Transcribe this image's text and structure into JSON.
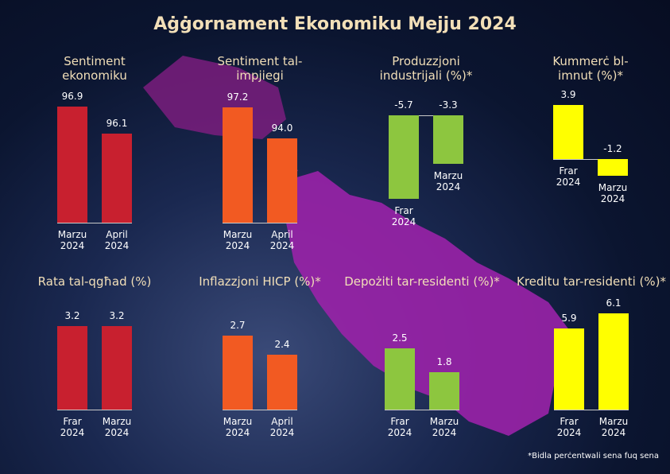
{
  "title": "Aġġornament Ekonomiku Mejju 2024",
  "footnote": "*Bidla perċentwali sena fuq sena",
  "chart_data": [
    {
      "type": "bar",
      "title": "Sentiment ekonomiku",
      "categories": [
        "Marzu 2024",
        "April 2024"
      ],
      "values": [
        96.9,
        96.1
      ],
      "color": "#c8202f",
      "ylim": [
        93.4,
        97
      ]
    },
    {
      "type": "bar",
      "title": "Sentiment tal-impjiegi",
      "categories": [
        "Marzu 2024",
        "April 2024"
      ],
      "values": [
        97.2,
        94
      ],
      "value_labels": [
        "97.2",
        "94.0"
      ],
      "color": "#f25a22",
      "ylim": [
        85.3,
        97.6
      ]
    },
    {
      "type": "bar",
      "title": "Produzzjoni industrijali (%)*",
      "categories": [
        "Frar 2024",
        "Marzu 2024"
      ],
      "values": [
        -5.7,
        -3.3
      ],
      "color": "#8dc63f",
      "ylim": [
        -7.3,
        0.8
      ]
    },
    {
      "type": "bar",
      "title": "Kummerċ bl-imnut (%)*",
      "categories": [
        "Frar 2024",
        "Marzu 2024"
      ],
      "values": [
        3.9,
        -1.2
      ],
      "color": "#ffff00",
      "ylim": [
        -4.6,
        4
      ]
    },
    {
      "type": "bar",
      "title": "Rata tal-qgħad (%)",
      "categories": [
        "Frar 2024",
        "Marzu 2024"
      ],
      "values": [
        3.2,
        3.2
      ],
      "color": "#c8202f",
      "ylim": [
        0,
        4.1
      ]
    },
    {
      "type": "bar",
      "title": "Inflazzjoni HICP (%)*",
      "categories": [
        "Marzu 2024",
        "April 2024"
      ],
      "values": [
        2.7,
        2.4
      ],
      "color": "#f25a22",
      "ylim": [
        1.5,
        3.25
      ]
    },
    {
      "type": "bar",
      "title": "Depożiti tar-residenti (%)*",
      "categories": [
        "Frar 2024",
        "Marzu 2024"
      ],
      "values": [
        2.5,
        1.8
      ],
      "color": "#8dc63f",
      "ylim": [
        0.7,
        3.85
      ]
    },
    {
      "type": "bar",
      "title": "Kreditu tar-residenti (%)*",
      "categories": [
        "Frar 2024",
        "Marzu 2024"
      ],
      "values": [
        5.9,
        6.1
      ],
      "color": "#ffff00",
      "ylim": [
        4.83,
        6.25
      ]
    }
  ]
}
